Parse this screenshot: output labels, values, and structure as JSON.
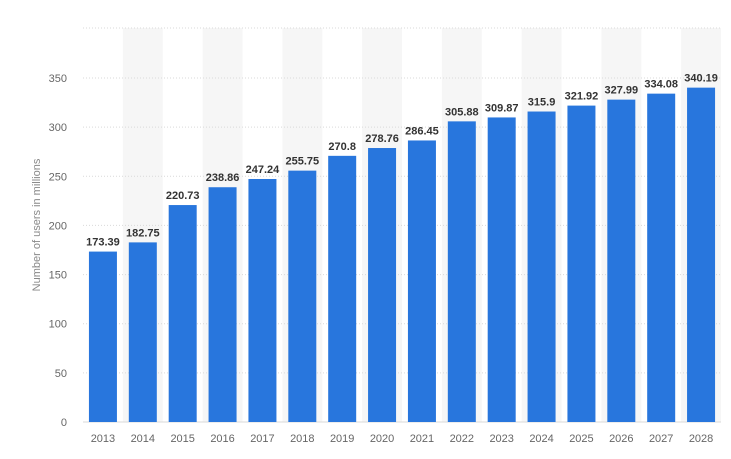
{
  "colors": {
    "bar": "#2876dd",
    "band": "#f6f6f6",
    "grid": "#d9d9d9"
  },
  "chart_data": {
    "type": "bar",
    "title": "",
    "xlabel": "",
    "ylabel": "Number of users in millions",
    "categories": [
      "2013",
      "2014",
      "2015",
      "2016",
      "2017",
      "2018",
      "2019",
      "2020",
      "2021",
      "2022",
      "2023",
      "2024",
      "2025",
      "2026",
      "2027",
      "2028"
    ],
    "values": [
      173.39,
      182.75,
      220.73,
      238.86,
      247.24,
      255.75,
      270.8,
      278.76,
      286.45,
      305.88,
      309.87,
      315.9,
      321.92,
      327.99,
      334.08,
      340.19
    ],
    "value_labels": [
      "173.39",
      "182.75",
      "220.73",
      "238.86",
      "247.24",
      "255.75",
      "270.8",
      "278.76",
      "286.45",
      "305.88",
      "309.87",
      "315.9",
      "321.92",
      "327.99",
      "334.08",
      "340.19"
    ],
    "ylim": [
      0,
      350
    ],
    "yticks": [
      0,
      50,
      100,
      150,
      200,
      250,
      300,
      350
    ],
    "grid": true,
    "legend": "none"
  }
}
